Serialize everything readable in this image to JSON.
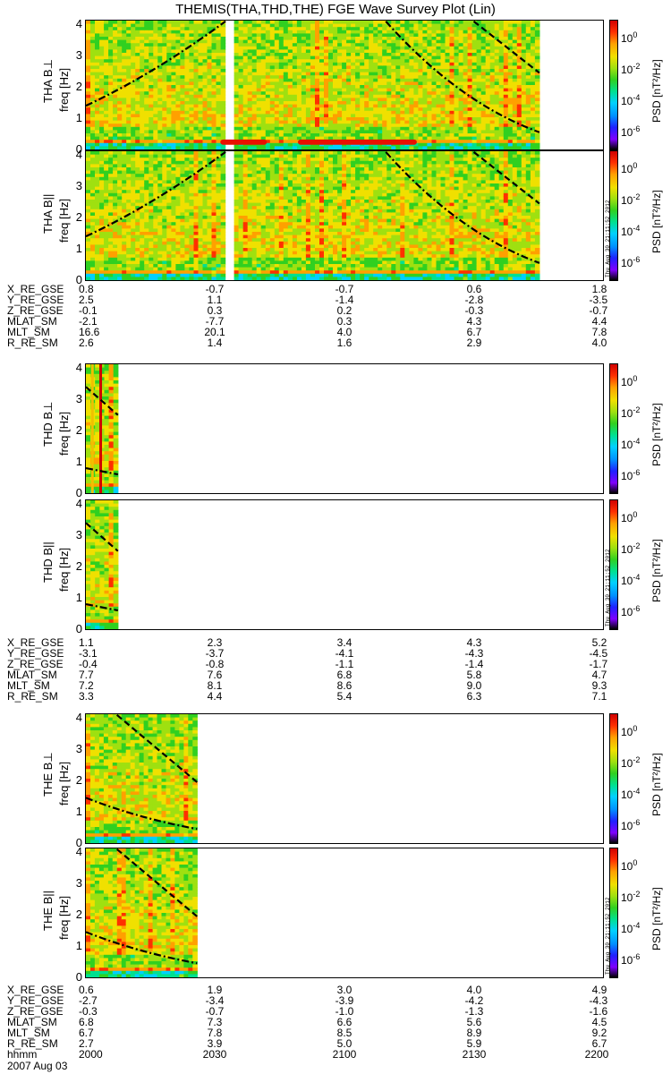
{
  "title": "THEMIS(THA,THD,THE) FGE Wave Survey Plot (Lin)",
  "date_label": "2007 Aug 03",
  "time_label_row": "hhmm",
  "stamp_text": "Thu Aug 30 21:11:52 2012",
  "colorbar": {
    "label": "PSD [nT²/Hz]",
    "ticks": [
      {
        "base": "10",
        "exp": "0"
      },
      {
        "base": "10",
        "exp": "-2"
      },
      {
        "base": "10",
        "exp": "-4"
      },
      {
        "base": "10",
        "exp": "-6"
      }
    ],
    "colors": [
      "#7f00ff",
      "#2020ff",
      "#0090ff",
      "#00d0ff",
      "#00e090",
      "#30d020",
      "#9fe010",
      "#f0e000",
      "#ffa000",
      "#ff3000",
      "#d00000"
    ]
  },
  "chart_data": [
    {
      "type": "heatmap",
      "id": "tha_bperp",
      "probe": "THA",
      "ylabel": "THA B⊥",
      "ylabel2": "freq [Hz]",
      "ylim": [
        0,
        4
      ],
      "yticks": [
        "4",
        "3",
        "2",
        "1",
        "0"
      ],
      "x_range": [
        0,
        1
      ],
      "data_end": 0.877,
      "gap": [
        0.262,
        0.283
      ],
      "red_band": [
        [
          0.26,
          0.35
        ],
        [
          0.41,
          0.64
        ]
      ],
      "curves": [
        {
          "name": "fc_left",
          "points": [
            [
              0,
              1.4
            ],
            [
              0.13,
              2.4
            ],
            [
              0.27,
              4.1
            ]
          ],
          "dash": "dashdot"
        },
        {
          "name": "fc_mid",
          "points": [
            [
              0.58,
              4.1
            ],
            [
              0.72,
              1.5
            ],
            [
              0.877,
              0.55
            ]
          ],
          "dash": "dashdot"
        },
        {
          "name": "fh_right",
          "points": [
            [
              0.75,
              4.1
            ],
            [
              0.877,
              2.45
            ]
          ],
          "dash": "dash"
        }
      ]
    },
    {
      "type": "heatmap",
      "id": "tha_bpar",
      "probe": "THA",
      "ylabel": "THA B||",
      "ylabel2": "freq [Hz]",
      "ylim": [
        0,
        4
      ],
      "yticks": [
        "4",
        "3",
        "2",
        "1",
        "0"
      ],
      "x_range": [
        0,
        1
      ],
      "data_end": 0.877,
      "gap": [
        0.262,
        0.283
      ],
      "curves": [
        {
          "name": "fc_left",
          "points": [
            [
              0,
              1.4
            ],
            [
              0.13,
              2.4
            ],
            [
              0.27,
              4.1
            ]
          ],
          "dash": "dashdot"
        },
        {
          "name": "fc_mid",
          "points": [
            [
              0.58,
              4.1
            ],
            [
              0.72,
              1.5
            ],
            [
              0.877,
              0.55
            ]
          ],
          "dash": "dashdot"
        },
        {
          "name": "fh_right",
          "points": [
            [
              0.75,
              4.1
            ],
            [
              0.877,
              2.45
            ]
          ],
          "dash": "dash"
        }
      ]
    },
    {
      "type": "heatmap",
      "id": "thd_bperp",
      "probe": "THD",
      "ylabel": "THD B⊥",
      "ylabel2": "freq [Hz]",
      "ylim": [
        0,
        4
      ],
      "yticks": [
        "4",
        "3",
        "2",
        "1",
        "0"
      ],
      "x_range": [
        0,
        1
      ],
      "data_end": 0.062,
      "red_lines": [
        0.01,
        0.026
      ],
      "curves": [
        {
          "name": "fh",
          "points": [
            [
              0,
              3.4
            ],
            [
              0.062,
              2.5
            ]
          ],
          "dash": "dash"
        },
        {
          "name": "fc",
          "points": [
            [
              0,
              0.8
            ],
            [
              0.062,
              0.6
            ]
          ],
          "dash": "dashdot"
        }
      ]
    },
    {
      "type": "heatmap",
      "id": "thd_bpar",
      "probe": "THD",
      "ylabel": "THD B||",
      "ylabel2": "freq [Hz]",
      "ylim": [
        0,
        4
      ],
      "yticks": [
        "4",
        "3",
        "2",
        "1",
        "0"
      ],
      "x_range": [
        0,
        1
      ],
      "data_end": 0.062,
      "curves": [
        {
          "name": "fh",
          "points": [
            [
              0,
              3.4
            ],
            [
              0.062,
              2.5
            ]
          ],
          "dash": "dash"
        },
        {
          "name": "fc",
          "points": [
            [
              0,
              0.8
            ],
            [
              0.062,
              0.6
            ]
          ],
          "dash": "dashdot"
        }
      ]
    },
    {
      "type": "heatmap",
      "id": "the_bperp",
      "probe": "THE",
      "ylabel": "THE B⊥",
      "ylabel2": "freq [Hz]",
      "ylim": [
        0,
        4
      ],
      "yticks": [
        "4",
        "3",
        "2",
        "1",
        "0"
      ],
      "x_range": [
        0,
        1
      ],
      "data_end": 0.215,
      "curves": [
        {
          "name": "fh",
          "points": [
            [
              0.06,
              4.1
            ],
            [
              0.215,
              1.95
            ]
          ],
          "dash": "dash"
        },
        {
          "name": "fc",
          "points": [
            [
              0,
              1.45
            ],
            [
              0.1,
              0.8
            ],
            [
              0.215,
              0.45
            ]
          ],
          "dash": "dashdot"
        }
      ]
    },
    {
      "type": "heatmap",
      "id": "the_bpar",
      "probe": "THE",
      "ylabel": "THE B||",
      "ylabel2": "freq [Hz]",
      "ylim": [
        0,
        4
      ],
      "yticks": [
        "4",
        "3",
        "2",
        "1",
        "0"
      ],
      "x_range": [
        0,
        1
      ],
      "data_end": 0.215,
      "curves": [
        {
          "name": "fh",
          "points": [
            [
              0.06,
              4.1
            ],
            [
              0.215,
              1.95
            ]
          ],
          "dash": "dash"
        },
        {
          "name": "fc",
          "points": [
            [
              0,
              1.45
            ],
            [
              0.1,
              0.8
            ],
            [
              0.215,
              0.45
            ]
          ],
          "dash": "dashdot"
        }
      ]
    }
  ],
  "ephemeris": [
    {
      "probe": "THA",
      "rows": [
        {
          "label": "X_RE_GSE",
          "values": [
            "0.8",
            "-0.7",
            "-0.7",
            "0.6",
            "1.8"
          ]
        },
        {
          "label": "Y_RE_GSE",
          "values": [
            "2.5",
            "1.1",
            "-1.4",
            "-2.8",
            "-3.5"
          ]
        },
        {
          "label": "Z_RE_GSE",
          "values": [
            "-0.1",
            "0.3",
            "0.2",
            "-0.3",
            "-0.7"
          ]
        },
        {
          "label": "MLAT_SM",
          "values": [
            "-2.1",
            "-7.7",
            "0.3",
            "4.3",
            "4.4"
          ]
        },
        {
          "label": "MLT_SM",
          "values": [
            "16.6",
            "20.1",
            "4.0",
            "6.7",
            "7.8"
          ]
        },
        {
          "label": "R_RE_SM",
          "values": [
            "2.6",
            "1.4",
            "1.6",
            "2.9",
            "4.0"
          ]
        }
      ]
    },
    {
      "probe": "THD",
      "rows": [
        {
          "label": "X_RE_GSE",
          "values": [
            "1.1",
            "2.3",
            "3.4",
            "4.3",
            "5.2"
          ]
        },
        {
          "label": "Y_RE_GSE",
          "values": [
            "-3.1",
            "-3.7",
            "-4.1",
            "-4.3",
            "-4.5"
          ]
        },
        {
          "label": "Z_RE_GSE",
          "values": [
            "-0.4",
            "-0.8",
            "-1.1",
            "-1.4",
            "-1.7"
          ]
        },
        {
          "label": "MLAT_SM",
          "values": [
            "7.7",
            "7.6",
            "6.8",
            "5.8",
            "4.7"
          ]
        },
        {
          "label": "MLT_SM",
          "values": [
            "7.2",
            "8.1",
            "8.6",
            "9.0",
            "9.3"
          ]
        },
        {
          "label": "R_RE_SM",
          "values": [
            "3.3",
            "4.4",
            "5.4",
            "6.3",
            "7.1"
          ]
        }
      ]
    },
    {
      "probe": "THE",
      "rows": [
        {
          "label": "X_RE_GSE",
          "values": [
            "0.6",
            "1.9",
            "3.0",
            "4.0",
            "4.9"
          ]
        },
        {
          "label": "Y_RE_GSE",
          "values": [
            "-2.7",
            "-3.4",
            "-3.9",
            "-4.2",
            "-4.3"
          ]
        },
        {
          "label": "Z_RE_GSE",
          "values": [
            "-0.3",
            "-0.7",
            "-1.0",
            "-1.3",
            "-1.6"
          ]
        },
        {
          "label": "MLAT_SM",
          "values": [
            "6.8",
            "7.3",
            "6.6",
            "5.6",
            "4.5"
          ]
        },
        {
          "label": "MLT_SM",
          "values": [
            "6.7",
            "7.8",
            "8.5",
            "8.9",
            "9.2"
          ]
        },
        {
          "label": "R_RE_SM",
          "values": [
            "2.7",
            "3.9",
            "5.0",
            "5.9",
            "6.7"
          ]
        },
        {
          "label": "hhmm",
          "values": [
            "2000",
            "2030",
            "2100",
            "2130",
            "2200"
          ]
        }
      ]
    }
  ]
}
